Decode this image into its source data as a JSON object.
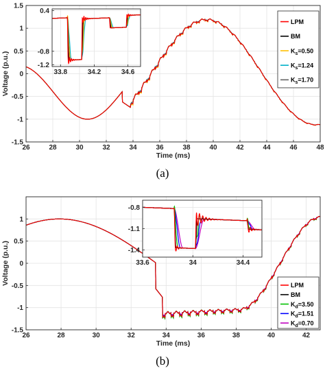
{
  "chart_data": [
    {
      "panel_label": "(a)",
      "type": "line",
      "xlabel": "Time (ms)",
      "ylabel": "Voltage (p.u.)",
      "xlim": [
        26,
        48
      ],
      "ylim": [
        -1.5,
        1.5
      ],
      "xticks": [
        26,
        28,
        30,
        32,
        34,
        36,
        38,
        40,
        42,
        44,
        46,
        48
      ],
      "yticks": [
        -1.5,
        -1,
        -0.5,
        0,
        0.5,
        1,
        1.5
      ],
      "grid": true,
      "legend_position": "top-right",
      "series": [
        {
          "name": "LPM",
          "color": "#ff0000"
        },
        {
          "name": "BM",
          "color": "#000000"
        },
        {
          "name": "Ks=0.50",
          "label_main": "K",
          "label_sub": "s",
          "label_val": "=0.50",
          "color": "#ffc000"
        },
        {
          "name": "Ks=1.24",
          "label_main": "K",
          "label_sub": "s",
          "label_val": "=1.24",
          "color": "#00b0c8"
        },
        {
          "name": "Ks=1.70",
          "label_main": "K",
          "label_sub": "s",
          "label_val": "=1.70",
          "color": "#606060"
        }
      ],
      "waveform": {
        "envelope_points": [
          [
            26,
            0.18
          ],
          [
            30.6,
            -1.0
          ],
          [
            33.2,
            -0.6
          ],
          [
            34.0,
            -1.1
          ],
          [
            39.5,
            1.2
          ],
          [
            46,
            -0.55
          ],
          [
            48,
            -1.18
          ]
        ],
        "fault_time": 33.8
      },
      "inset": {
        "xlim": [
          33.7,
          34.75
        ],
        "ylim": [
          -1.25,
          0.45
        ],
        "xticks": [
          33.8,
          34.2,
          34.6
        ],
        "yticks": [
          -1.2,
          -0.8,
          0.4
        ],
        "grid": true
      }
    },
    {
      "panel_label": "(b)",
      "type": "line",
      "xlabel": "Time (ms)",
      "ylabel": "Voltage (p.u.)",
      "xlim": [
        26,
        42.8
      ],
      "ylim": [
        -1.5,
        1.5
      ],
      "xticks": [
        26,
        28,
        30,
        32,
        34,
        36,
        38,
        40,
        42
      ],
      "yticks": [
        -1.5,
        -1,
        -0.5,
        0,
        0.5,
        1
      ],
      "grid": true,
      "legend_position": "bottom-right",
      "series": [
        {
          "name": "LPM",
          "color": "#ff0000"
        },
        {
          "name": "BM",
          "color": "#000000"
        },
        {
          "name": "Kd=3.50",
          "label_main": "K",
          "label_sub": "d",
          "label_val": "=3.50",
          "color": "#00c000"
        },
        {
          "name": "Kd=1.51",
          "label_main": "K",
          "label_sub": "d",
          "label_val": "=1.51",
          "color": "#0000ff"
        },
        {
          "name": "Kd=0.70",
          "label_main": "K",
          "label_sub": "d",
          "label_val": "=0.70",
          "color": "#c000c0"
        }
      ],
      "inset": {
        "xlim": [
          33.6,
          34.55
        ],
        "ylim": [
          -1.5,
          -0.7
        ],
        "xticks": [
          33.6,
          34,
          34.4
        ],
        "yticks": [
          -0.8,
          -1.1,
          -1.4
        ],
        "grid": true
      }
    }
  ]
}
